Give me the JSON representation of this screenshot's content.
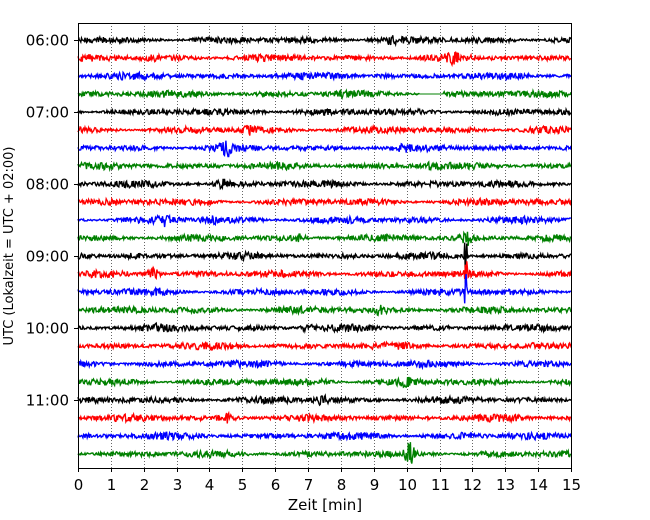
{
  "chart_data": {
    "type": "line",
    "title": "",
    "xlabel": "Zeit  [min]",
    "ylabel": "UTC (Lokalzeit = UTC + 02:00)",
    "xlim": [
      0,
      15
    ],
    "x_ticks": [
      0,
      1,
      2,
      3,
      4,
      5,
      6,
      7,
      8,
      9,
      10,
      11,
      12,
      13,
      14,
      15
    ],
    "y_ticks": [
      {
        "label": "06:00",
        "row": 0
      },
      {
        "label": "07:00",
        "row": 4
      },
      {
        "label": "08:00",
        "row": 8
      },
      {
        "label": "09:00",
        "row": 12
      },
      {
        "label": "10:00",
        "row": 16
      },
      {
        "label": "11:00",
        "row": 20
      }
    ],
    "row_start_utc": "06:00",
    "row_length_min": 15,
    "grid": "vertical dotted at each minute",
    "legend": "none",
    "color_cycle": [
      "#000000",
      "#ff0000",
      "#0000ff",
      "#008000"
    ],
    "traces": [
      {
        "start": "06:00",
        "events": [
          {
            "t": 9.5,
            "a": 1.6
          },
          {
            "t": 14.5,
            "a": 1.3
          }
        ]
      },
      {
        "start": "06:15",
        "events": [
          {
            "t": 11.4,
            "a": 2.2
          },
          {
            "t": 2.3,
            "a": 1.3
          }
        ]
      },
      {
        "start": "06:30",
        "events": [
          {
            "t": 3.4,
            "a": 1.2
          },
          {
            "t": 9.2,
            "a": 1.3
          }
        ]
      },
      {
        "start": "06:45",
        "events": [
          {
            "t": 8.0,
            "a": 1.3
          }
        ],
        "gap": [
          10.4,
          11.1
        ]
      },
      {
        "start": "07:00",
        "events": [
          {
            "t": 5.6,
            "a": 1.3
          }
        ]
      },
      {
        "start": "07:15",
        "events": [
          {
            "t": 5.2,
            "a": 2.0
          },
          {
            "t": 14.0,
            "a": 1.3
          }
        ]
      },
      {
        "start": "07:30",
        "events": [
          {
            "t": 4.5,
            "a": 2.4
          },
          {
            "t": 9.9,
            "a": 1.3
          }
        ]
      },
      {
        "start": "07:45",
        "events": [
          {
            "t": 10.8,
            "a": 1.6
          }
        ]
      },
      {
        "start": "08:00",
        "events": [
          {
            "t": 4.4,
            "a": 2.0
          },
          {
            "t": 14.6,
            "a": 1.3
          }
        ]
      },
      {
        "start": "08:15",
        "events": [
          {
            "t": 1.1,
            "a": 1.3
          },
          {
            "t": 12.4,
            "a": 1.2
          }
        ]
      },
      {
        "start": "08:30",
        "events": [
          {
            "t": 2.6,
            "a": 2.0
          },
          {
            "t": 4.1,
            "a": 1.6
          }
        ]
      },
      {
        "start": "08:45",
        "events": [
          {
            "t": 6.7,
            "a": 1.5
          },
          {
            "t": 11.8,
            "a": 2.6
          }
        ]
      },
      {
        "start": "09:00",
        "events": [
          {
            "t": 11.8,
            "a": 9.0
          },
          {
            "t": 1.7,
            "a": 1.3
          }
        ]
      },
      {
        "start": "09:15",
        "events": [
          {
            "t": 11.8,
            "a": 8.0
          },
          {
            "t": 2.3,
            "a": 2.2
          }
        ]
      },
      {
        "start": "09:30",
        "events": [
          {
            "t": 11.8,
            "a": 7.5
          },
          {
            "t": 2.5,
            "a": 1.3
          }
        ]
      },
      {
        "start": "09:45",
        "events": [
          {
            "t": 9.2,
            "a": 2.0
          }
        ]
      },
      {
        "start": "10:00",
        "events": [
          {
            "t": 7.0,
            "a": 1.6
          },
          {
            "t": 2.4,
            "a": 1.3
          }
        ]
      },
      {
        "start": "10:15",
        "events": [
          {
            "t": 13.8,
            "a": 1.3
          },
          {
            "t": 9.9,
            "a": 1.2
          }
        ]
      },
      {
        "start": "10:30",
        "events": [
          {
            "t": 10.3,
            "a": 1.3
          }
        ]
      },
      {
        "start": "10:45",
        "events": [
          {
            "t": 7.5,
            "a": 1.3
          },
          {
            "t": 10.0,
            "a": 1.6
          }
        ]
      },
      {
        "start": "11:00",
        "events": [
          {
            "t": 7.4,
            "a": 2.0
          }
        ]
      },
      {
        "start": "11:15",
        "events": [
          {
            "t": 4.5,
            "a": 2.0
          },
          {
            "t": 13.3,
            "a": 1.2
          }
        ]
      },
      {
        "start": "11:30",
        "events": [
          {
            "t": 11.7,
            "a": 1.3
          }
        ]
      },
      {
        "start": "11:45",
        "events": [
          {
            "t": 10.1,
            "a": 3.2
          }
        ]
      }
    ]
  }
}
